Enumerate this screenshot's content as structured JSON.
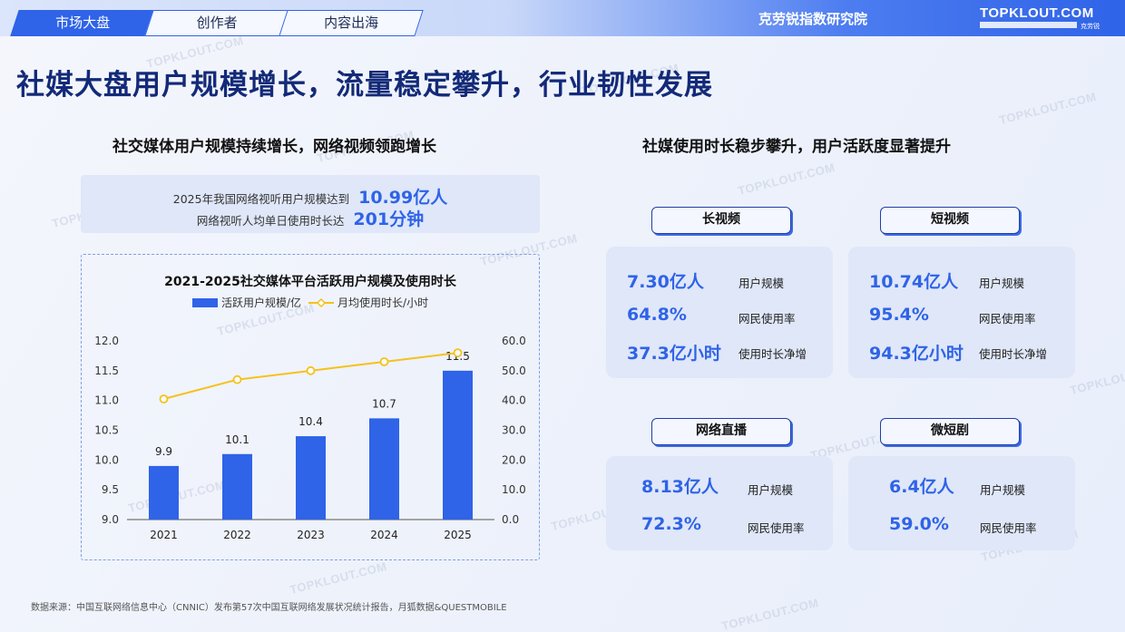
{
  "nav": {
    "tabs": [
      "市场大盘",
      "创作者",
      "内容出海"
    ],
    "brand_cn": "克劳锐指数研究院",
    "brand_logo": "TOPKLOUT.COM",
    "brand_logo_sub": "克劳锐"
  },
  "page": {
    "title": "社媒大盘用户规模增长，流量稳定攀升，行业韧性发展",
    "left_subtitle": "社交媒体用户规模持续增长，网络视频领跑增长",
    "right_subtitle": "社媒使用时长稳步攀升，用户活跃度显著提升"
  },
  "info": {
    "line1_text": "2025年我国网络视听用户规模达到",
    "line1_value": "10.99亿人",
    "line2_text": "网络视听人均单日使用时长达",
    "line2_value": "201分钟"
  },
  "chart_data": {
    "type": "bar",
    "title": "2021-2025社交媒体平台活跃用户规模及使用时长",
    "categories": [
      "2021",
      "2022",
      "2023",
      "2024",
      "2025"
    ],
    "series": [
      {
        "name": "活跃用户规模/亿",
        "type": "bar",
        "axis": "left",
        "values": [
          9.9,
          10.1,
          10.4,
          10.7,
          11.5
        ],
        "color": "#2f63e8"
      },
      {
        "name": "月均使用时长/小时",
        "type": "line",
        "axis": "right",
        "values": [
          40.5,
          47,
          50,
          53,
          56
        ],
        "color": "#f5c11a"
      }
    ],
    "y_left": {
      "min": 9.0,
      "max": 12.0,
      "ticks": [
        "9.0",
        "9.5",
        "10.0",
        "10.5",
        "11.0",
        "11.5",
        "12.0"
      ]
    },
    "y_right": {
      "min": 0,
      "max": 60,
      "ticks": [
        "0.0",
        "10.0",
        "20.0",
        "30.0",
        "40.0",
        "50.0",
        "60.0"
      ]
    },
    "bar_labels": [
      "9.9",
      "10.1",
      "10.4",
      "10.7",
      "11.5"
    ],
    "legend_position": "top",
    "grid": false
  },
  "panels": [
    {
      "category": "长视频",
      "metrics": [
        {
          "value": "7.30亿人",
          "label": "用户规模"
        },
        {
          "value": "64.8%",
          "label": "网民使用率"
        },
        {
          "value": "37.3亿小时",
          "label": "使用时长净增"
        }
      ]
    },
    {
      "category": "短视频",
      "metrics": [
        {
          "value": "10.74亿人",
          "label": "用户规模"
        },
        {
          "value": "95.4%",
          "label": "网民使用率"
        },
        {
          "value": "94.3亿小时",
          "label": "使用时长净增"
        }
      ]
    },
    {
      "category": "网络直播",
      "metrics": [
        {
          "value": "8.13亿人",
          "label": "用户规模"
        },
        {
          "value": "72.3%",
          "label": "网民使用率"
        }
      ]
    },
    {
      "category": "微短剧",
      "metrics": [
        {
          "value": "6.4亿人",
          "label": "用户规模"
        },
        {
          "value": "59.0%",
          "label": "网民使用率"
        }
      ]
    }
  ],
  "source": "数据来源：中国互联网络信息中心（CNNIC）发布第57次中国互联网络发展状况统计报告，月狐数据&QUESTMOBILE",
  "watermark": "TOPKLOUT.COM",
  "colors": {
    "accent": "#2f63e8",
    "line": "#f5c11a",
    "title": "#132a78"
  }
}
